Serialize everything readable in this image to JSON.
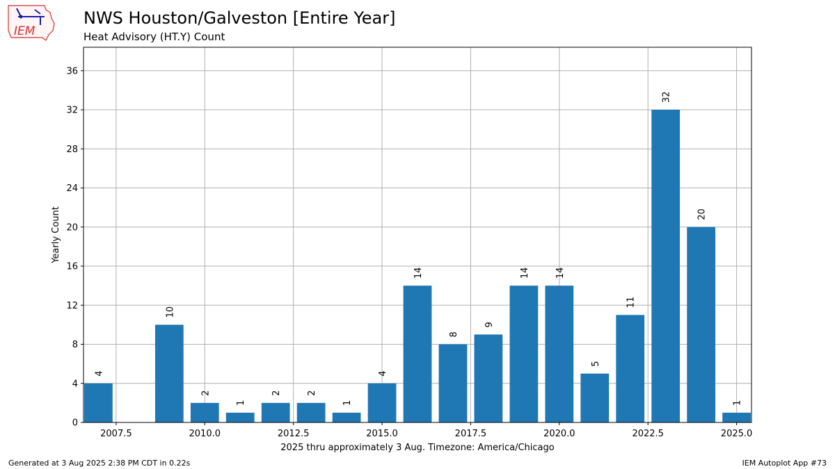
{
  "header": {
    "title": "NWS Houston/Galveston [Entire Year]",
    "subtitle": "Heat Advisory (HT.Y) Count",
    "logo_text": "IEM"
  },
  "footer": {
    "generated": "Generated at 3 Aug 2025 2:38 PM CDT in 0.22s",
    "app": "IEM Autoplot App #73"
  },
  "chart_data": {
    "type": "bar",
    "title": "NWS Houston/Galveston [Entire Year]",
    "subtitle": "Heat Advisory (HT.Y) Count",
    "xlabel": "2025 thru approximately 3 Aug. Timezone: America/Chicago",
    "ylabel": "Yearly Count",
    "x": [
      2007,
      2008,
      2009,
      2010,
      2011,
      2012,
      2013,
      2014,
      2015,
      2016,
      2017,
      2018,
      2019,
      2020,
      2021,
      2022,
      2023,
      2024,
      2025
    ],
    "values": [
      4,
      0,
      10,
      2,
      1,
      2,
      2,
      1,
      4,
      14,
      8,
      9,
      14,
      14,
      5,
      11,
      32,
      20,
      1
    ],
    "data_labels": [
      "4",
      "",
      "10",
      "2",
      "1",
      "2",
      "2",
      "1",
      "4",
      "14",
      "8",
      "9",
      "14",
      "14",
      "5",
      "11",
      "32",
      "20",
      "1"
    ],
    "xlim": [
      2006.58,
      2025.42
    ],
    "ylim": [
      0,
      38.4
    ],
    "xticks": [
      2007.5,
      2010.0,
      2012.5,
      2015.0,
      2017.5,
      2020.0,
      2022.5,
      2025.0
    ],
    "xtick_labels": [
      "2007.5",
      "2010.0",
      "2012.5",
      "2015.0",
      "2017.5",
      "2020.0",
      "2022.5",
      "2025.0"
    ],
    "yticks": [
      0,
      4,
      8,
      12,
      16,
      20,
      24,
      28,
      32,
      36
    ],
    "ytick_labels": [
      "0",
      "4",
      "8",
      "12",
      "16",
      "20",
      "24",
      "28",
      "32",
      "36"
    ],
    "grid": true,
    "bar_color": "#1f77b4"
  }
}
